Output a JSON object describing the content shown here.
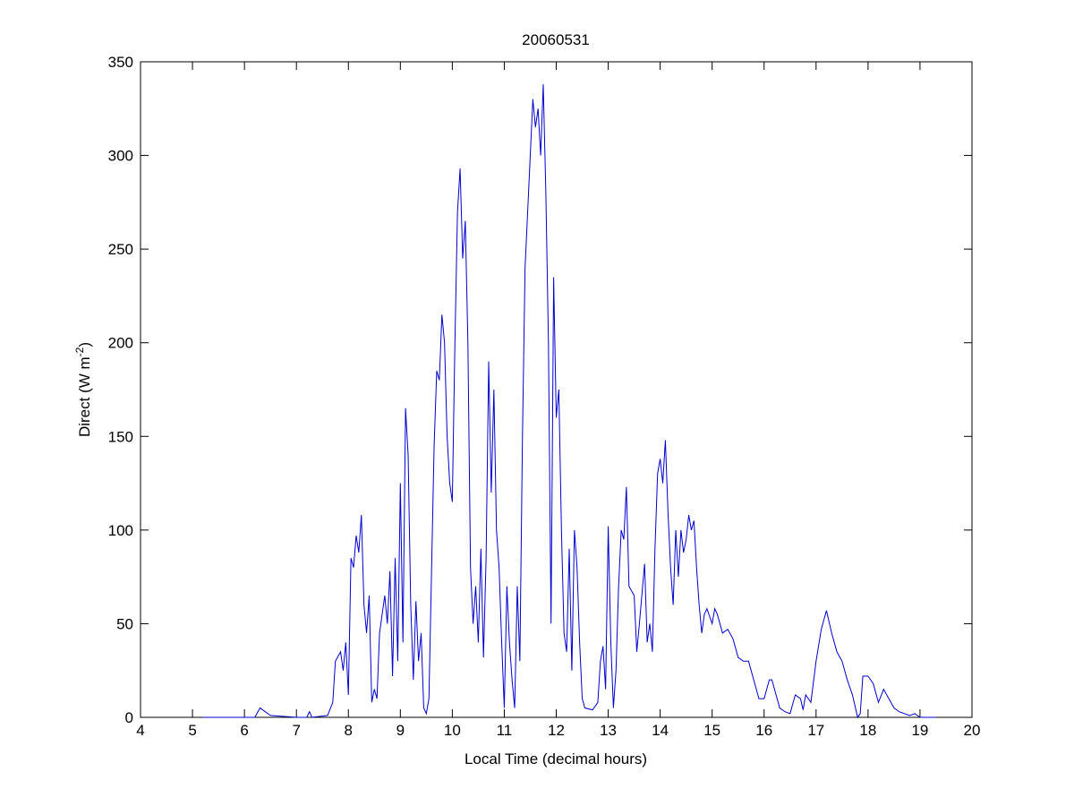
{
  "chart_data": {
    "type": "line",
    "title": "20060531",
    "x_label": "Local Time (decimal hours)",
    "y_label": [
      "Direct (W m",
      "-2",
      ")"
    ],
    "xlim": [
      4,
      20
    ],
    "xticks": [
      4,
      5,
      6,
      7,
      8,
      9,
      10,
      11,
      12,
      13,
      14,
      15,
      16,
      17,
      18,
      19,
      20
    ],
    "ylim": [
      0,
      350
    ],
    "yticks": [
      0,
      50,
      100,
      150,
      200,
      250,
      300,
      350
    ],
    "grid": false,
    "series": [
      {
        "color": "#0000cc",
        "x": [
          5.2,
          6.2,
          6.3,
          6.5,
          7.0,
          7.2,
          7.25,
          7.3,
          7.6,
          7.7,
          7.75,
          7.85,
          7.9,
          7.95,
          8.0,
          8.05,
          8.1,
          8.15,
          8.2,
          8.25,
          8.3,
          8.35,
          8.4,
          8.45,
          8.5,
          8.55,
          8.6,
          8.7,
          8.75,
          8.8,
          8.85,
          8.9,
          8.95,
          9.0,
          9.05,
          9.1,
          9.15,
          9.2,
          9.25,
          9.3,
          9.35,
          9.4,
          9.45,
          9.5,
          9.55,
          9.65,
          9.7,
          9.75,
          9.8,
          9.85,
          9.9,
          9.95,
          10.0,
          10.05,
          10.1,
          10.15,
          10.2,
          10.25,
          10.3,
          10.35,
          10.4,
          10.45,
          10.5,
          10.55,
          10.6,
          10.65,
          10.7,
          10.75,
          10.8,
          10.85,
          10.9,
          10.95,
          11.0,
          11.05,
          11.1,
          11.15,
          11.2,
          11.25,
          11.3,
          11.35,
          11.4,
          11.45,
          11.5,
          11.55,
          11.6,
          11.65,
          11.7,
          11.75,
          11.8,
          11.85,
          11.9,
          11.95,
          12.0,
          12.05,
          12.1,
          12.15,
          12.2,
          12.25,
          12.3,
          12.35,
          12.4,
          12.45,
          12.5,
          12.55,
          12.7,
          12.8,
          12.85,
          12.9,
          12.95,
          13.0,
          13.05,
          13.1,
          13.15,
          13.2,
          13.25,
          13.3,
          13.35,
          13.4,
          13.5,
          13.55,
          13.6,
          13.7,
          13.75,
          13.8,
          13.85,
          13.9,
          13.95,
          14.0,
          14.05,
          14.1,
          14.15,
          14.2,
          14.25,
          14.3,
          14.35,
          14.4,
          14.45,
          14.5,
          14.55,
          14.6,
          14.65,
          14.7,
          14.75,
          14.8,
          14.85,
          14.9,
          15.0,
          15.05,
          15.1,
          15.2,
          15.3,
          15.4,
          15.5,
          15.6,
          15.7,
          15.8,
          15.9,
          16.0,
          16.1,
          16.15,
          16.2,
          16.3,
          16.4,
          16.5,
          16.6,
          16.7,
          16.75,
          16.8,
          16.9,
          17.0,
          17.1,
          17.2,
          17.3,
          17.4,
          17.5,
          17.6,
          17.7,
          17.8,
          17.85,
          17.9,
          18.0,
          18.1,
          18.2,
          18.3,
          18.4,
          18.5,
          18.6,
          18.8,
          18.9,
          19.0,
          19.3
        ],
        "values": [
          0,
          0,
          5,
          1,
          0,
          0,
          3,
          0,
          1,
          8,
          30,
          35,
          25,
          40,
          12,
          85,
          80,
          97,
          88,
          108,
          60,
          45,
          65,
          8,
          15,
          10,
          45,
          65,
          50,
          78,
          22,
          85,
          30,
          125,
          40,
          165,
          140,
          60,
          20,
          62,
          30,
          45,
          5,
          2,
          10,
          145,
          185,
          180,
          215,
          200,
          150,
          125,
          115,
          200,
          270,
          293,
          245,
          265,
          200,
          80,
          50,
          70,
          40,
          90,
          32,
          85,
          190,
          120,
          175,
          100,
          80,
          40,
          5,
          70,
          40,
          20,
          5,
          70,
          30,
          150,
          240,
          270,
          300,
          330,
          315,
          325,
          300,
          338,
          280,
          200,
          50,
          235,
          160,
          175,
          100,
          45,
          35,
          90,
          25,
          100,
          80,
          40,
          10,
          5,
          4,
          8,
          30,
          38,
          15,
          102,
          40,
          5,
          25,
          70,
          100,
          95,
          123,
          70,
          65,
          35,
          50,
          82,
          40,
          50,
          35,
          90,
          130,
          138,
          125,
          148,
          110,
          80,
          60,
          100,
          75,
          100,
          88,
          95,
          108,
          100,
          105,
          80,
          60,
          45,
          55,
          58,
          50,
          58,
          55,
          45,
          47,
          42,
          32,
          30,
          30,
          20,
          10,
          10,
          20,
          20,
          15,
          5,
          3,
          2,
          12,
          10,
          4,
          12,
          8,
          30,
          47,
          57,
          45,
          35,
          30,
          20,
          12,
          0,
          2,
          22,
          22,
          18,
          8,
          15,
          10,
          5,
          3,
          1,
          2,
          0,
          0
        ]
      }
    ]
  }
}
